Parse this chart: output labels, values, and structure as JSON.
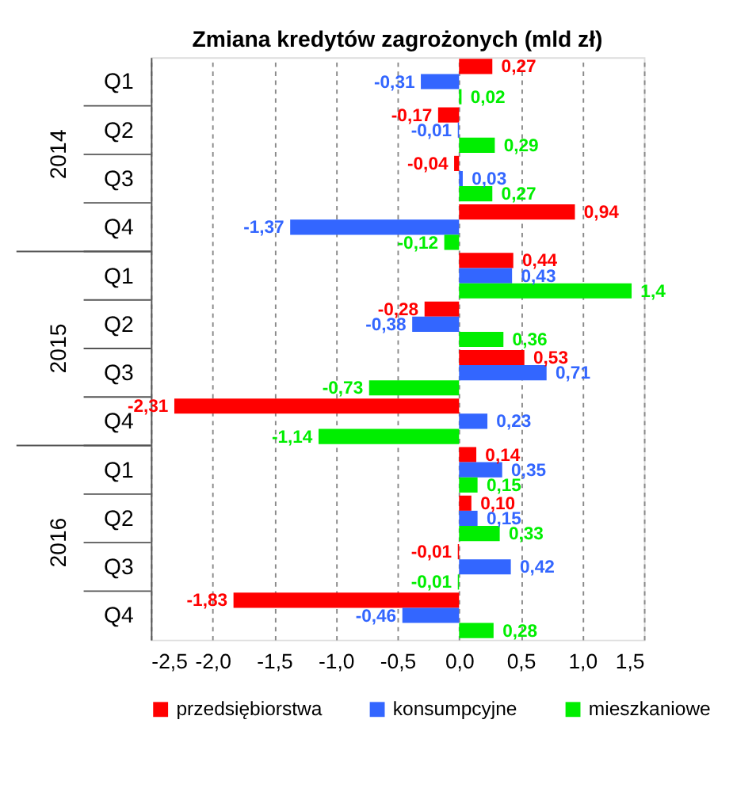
{
  "chart_data": {
    "type": "bar",
    "orientation": "horizontal",
    "title": "Zmiana kredytów zagrożonych (mld zł)",
    "categories": [
      "Q1",
      "Q2",
      "Q3",
      "Q4",
      "Q1",
      "Q2",
      "Q3",
      "Q4",
      "Q1",
      "Q2",
      "Q3",
      "Q4"
    ],
    "annotations": [
      "2014",
      "2015",
      "2016"
    ],
    "series": [
      {
        "name": "przedsiębiorstwa",
        "color": "#ff0000",
        "values": [
          0.27,
          -0.17,
          -0.04,
          0.94,
          0.44,
          -0.28,
          0.53,
          -2.31,
          0.14,
          0.1,
          -0.01,
          -1.83
        ],
        "value_labels": [
          "0,27",
          "-0,17",
          "-0,04",
          "0,94",
          "0,44",
          "-0,28",
          "0,53",
          "-2,31",
          "0,14",
          "0,10",
          "-0,01",
          "-1,83"
        ]
      },
      {
        "name": "konsumpcyjne",
        "color": "#3366ff",
        "values": [
          -0.31,
          -0.01,
          0.03,
          -1.37,
          0.43,
          -0.38,
          0.71,
          0.23,
          0.35,
          0.15,
          0.42,
          -0.46
        ],
        "value_labels": [
          "-0,31",
          "-0,01",
          "0,03",
          "-1,37",
          "0,43",
          "-0,38",
          "0,71",
          "0,23",
          "0,35",
          "0,15",
          "0,42",
          "-0,46"
        ]
      },
      {
        "name": "mieszkaniowe",
        "color": "#00ee00",
        "values": [
          0.02,
          0.29,
          0.27,
          -0.12,
          1.4,
          0.36,
          -0.73,
          -1.14,
          0.15,
          0.33,
          -0.01,
          0.28
        ],
        "value_labels": [
          "0,02",
          "0,29",
          "0,27",
          "-0,12",
          "1,4",
          "0,36",
          "-0,73",
          "-1,14",
          "0,15",
          "0,33",
          "-0,01",
          "0,28"
        ]
      }
    ],
    "xlim": [
      -2.5,
      1.5
    ],
    "xticks": [
      {
        "value": -2.5,
        "label": "-2,5"
      },
      {
        "value": -2.0,
        "label": "-2,0"
      },
      {
        "value": -1.5,
        "label": "-1,5"
      },
      {
        "value": -1.0,
        "label": "-1,0"
      },
      {
        "value": -0.5,
        "label": "-0,5"
      },
      {
        "value": 0.0,
        "label": "0,0"
      },
      {
        "value": 0.5,
        "label": "0,5"
      },
      {
        "value": 1.0,
        "label": "1,0"
      },
      {
        "value": 1.5,
        "label": "1,5"
      }
    ],
    "grid": "x",
    "legend": "bottom"
  }
}
